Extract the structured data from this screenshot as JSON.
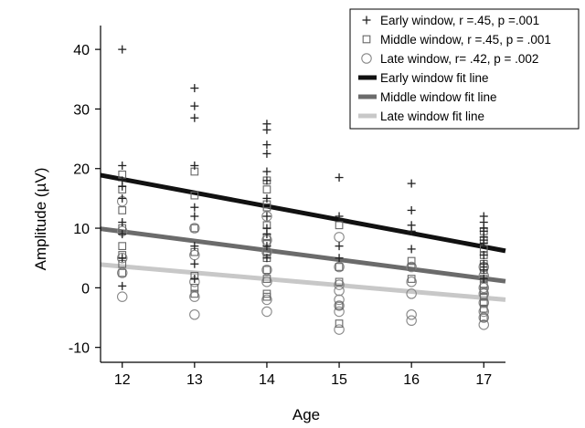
{
  "chart_data": {
    "type": "scatter",
    "title": "",
    "xlabel": "Age",
    "ylabel": "Amplitude (µV)",
    "xlim": [
      11.7,
      17.3
    ],
    "ylim": [
      -12.5,
      44
    ],
    "xticks": [
      12,
      13,
      14,
      15,
      16,
      17
    ],
    "yticks": [
      -10,
      0,
      10,
      20,
      30,
      40
    ],
    "grid": false,
    "legend_position": "top-right",
    "series": [
      {
        "name": "Early window, r =.45, p =.001",
        "marker": "plus",
        "color": "#222222",
        "points": [
          [
            12,
            40
          ],
          [
            12,
            20.5
          ],
          [
            12,
            18
          ],
          [
            12,
            17
          ],
          [
            12,
            15
          ],
          [
            12,
            11
          ],
          [
            12,
            9
          ],
          [
            12,
            5
          ],
          [
            12,
            0.3
          ],
          [
            13,
            33.5
          ],
          [
            13,
            30.5
          ],
          [
            13,
            28.5
          ],
          [
            13,
            20.5
          ],
          [
            13,
            13.5
          ],
          [
            13,
            12
          ],
          [
            13,
            7
          ],
          [
            13,
            4
          ],
          [
            13,
            1.5
          ],
          [
            14,
            27.5
          ],
          [
            14,
            26.5
          ],
          [
            14,
            24
          ],
          [
            14,
            22.5
          ],
          [
            14,
            19.5
          ],
          [
            14,
            18
          ],
          [
            14,
            15
          ],
          [
            14,
            12
          ],
          [
            14,
            10
          ],
          [
            14,
            9
          ],
          [
            14,
            7
          ],
          [
            14,
            5
          ],
          [
            15,
            18.5
          ],
          [
            15,
            12
          ],
          [
            15,
            7
          ],
          [
            15,
            5
          ],
          [
            16,
            17.5
          ],
          [
            16,
            13
          ],
          [
            16,
            10.5
          ],
          [
            16,
            9.5
          ],
          [
            16,
            6.5
          ],
          [
            17,
            12
          ],
          [
            17,
            11
          ],
          [
            17,
            10
          ],
          [
            17,
            9.5
          ],
          [
            17,
            8.5
          ],
          [
            17,
            8
          ],
          [
            17,
            7.5
          ],
          [
            17,
            5.5
          ],
          [
            17,
            4
          ],
          [
            17,
            3
          ],
          [
            17,
            1.5
          ]
        ]
      },
      {
        "name": "Middle window, r =.45, p = .001",
        "marker": "square",
        "color": "#666666",
        "points": [
          [
            12,
            19
          ],
          [
            12,
            16.5
          ],
          [
            12,
            13
          ],
          [
            12,
            10
          ],
          [
            12,
            7
          ],
          [
            12,
            5.5
          ],
          [
            12,
            4
          ],
          [
            12,
            2.5
          ],
          [
            13,
            19.5
          ],
          [
            13,
            15.5
          ],
          [
            13,
            10
          ],
          [
            13,
            6
          ],
          [
            13,
            2
          ],
          [
            13,
            0
          ],
          [
            13,
            -1
          ],
          [
            14,
            18
          ],
          [
            14,
            16.5
          ],
          [
            14,
            14
          ],
          [
            14,
            13.5
          ],
          [
            14,
            10.5
          ],
          [
            14,
            8.5
          ],
          [
            14,
            7.5
          ],
          [
            14,
            6
          ],
          [
            14,
            5
          ],
          [
            14,
            3
          ],
          [
            14,
            1.5
          ],
          [
            14,
            -1
          ],
          [
            14,
            -1.5
          ],
          [
            15,
            10.5
          ],
          [
            15,
            3.5
          ],
          [
            15,
            1
          ],
          [
            15,
            -3
          ],
          [
            15,
            -6
          ],
          [
            16,
            4.5
          ],
          [
            16,
            3.5
          ],
          [
            16,
            1.5
          ],
          [
            17,
            9.5
          ],
          [
            17,
            8
          ],
          [
            17,
            6.5
          ],
          [
            17,
            5.5
          ],
          [
            17,
            4
          ],
          [
            17,
            3
          ],
          [
            17,
            1.5
          ],
          [
            17,
            0.5
          ],
          [
            17,
            -0.5
          ],
          [
            17,
            -1.5
          ],
          [
            17,
            -2.5
          ],
          [
            17,
            -3.5
          ],
          [
            17,
            -5
          ]
        ]
      },
      {
        "name": "Late window, r= .42, p = .002",
        "marker": "circle",
        "color": "#888888",
        "points": [
          [
            12,
            14.5
          ],
          [
            12,
            9.5
          ],
          [
            12,
            5
          ],
          [
            12,
            2.5
          ],
          [
            12,
            -1.5
          ],
          [
            13,
            10
          ],
          [
            13,
            5.5
          ],
          [
            13,
            1
          ],
          [
            13,
            -1.5
          ],
          [
            13,
            -4.5
          ],
          [
            14,
            12
          ],
          [
            14,
            8
          ],
          [
            14,
            6
          ],
          [
            14,
            3
          ],
          [
            14,
            1
          ],
          [
            14,
            -2
          ],
          [
            14,
            -4
          ],
          [
            15,
            8.5
          ],
          [
            15,
            3.5
          ],
          [
            15,
            0.5
          ],
          [
            15,
            -0.5
          ],
          [
            15,
            -2
          ],
          [
            15,
            -3
          ],
          [
            15,
            -4
          ],
          [
            15,
            -7
          ],
          [
            16,
            3.5
          ],
          [
            16,
            1
          ],
          [
            16,
            -1
          ],
          [
            16,
            -4.5
          ],
          [
            16,
            -5.5
          ],
          [
            17,
            3.5
          ],
          [
            17,
            2
          ],
          [
            17,
            0
          ],
          [
            17,
            -1
          ],
          [
            17,
            -2.5
          ],
          [
            17,
            -4
          ],
          [
            17,
            -5
          ],
          [
            17,
            -6.2
          ]
        ]
      }
    ],
    "fit_lines": [
      {
        "name": "Early window fit line",
        "color": "#111111",
        "x": [
          11.7,
          17.3
        ],
        "y": [
          18.9,
          6.2
        ]
      },
      {
        "name": "Middle window fit line",
        "color": "#6b6b6b",
        "x": [
          11.7,
          17.3
        ],
        "y": [
          9.9,
          1.1
        ]
      },
      {
        "name": "Late window fit line",
        "color": "#c8c8c8",
        "x": [
          11.7,
          17.3
        ],
        "y": [
          3.9,
          -2.0
        ]
      }
    ]
  }
}
